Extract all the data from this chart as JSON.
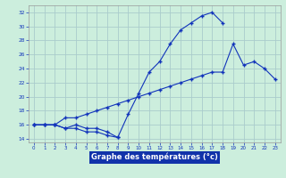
{
  "background_color": "#cceedd",
  "grid_color": "#aacccc",
  "line_color": "#1133bb",
  "xlabel": "Graphe des températures (°c)",
  "hours": [
    0,
    1,
    2,
    3,
    4,
    5,
    6,
    7,
    8,
    9,
    10,
    11,
    12,
    13,
    14,
    15,
    16,
    17,
    18,
    19,
    20,
    21,
    22,
    23
  ],
  "line1_x": [
    0,
    1,
    2,
    3,
    4,
    5,
    6,
    7,
    8,
    9,
    10,
    11,
    12,
    13,
    14,
    15,
    16,
    17,
    18
  ],
  "line1_y": [
    16.0,
    16.0,
    16.0,
    15.5,
    16.0,
    15.5,
    15.5,
    15.0,
    14.2,
    17.5,
    20.5,
    23.5,
    25.0,
    27.5,
    29.5,
    30.5,
    31.5,
    32.0,
    30.5
  ],
  "line2_x": [
    0,
    1,
    2,
    3,
    4,
    5,
    6,
    7,
    8
  ],
  "line2_y": [
    16.0,
    16.0,
    16.0,
    15.5,
    15.5,
    15.0,
    15.0,
    14.5,
    14.2
  ],
  "line3_x": [
    0,
    1,
    2,
    3,
    4,
    5,
    6,
    7,
    8,
    9,
    10,
    11,
    12,
    13,
    14,
    15,
    16,
    17,
    18,
    19,
    20,
    21,
    22,
    23
  ],
  "line3_y": [
    16.0,
    16.0,
    16.0,
    17.0,
    17.0,
    17.5,
    18.0,
    18.5,
    19.0,
    19.5,
    20.0,
    20.5,
    21.0,
    21.5,
    22.0,
    22.5,
    23.0,
    23.5,
    23.5,
    27.5,
    24.5,
    25.0,
    24.0,
    22.5
  ],
  "ylim": [
    13.5,
    33.0
  ],
  "yticks": [
    14,
    16,
    18,
    20,
    22,
    24,
    26,
    28,
    30,
    32
  ],
  "xlim": [
    -0.5,
    23.5
  ],
  "xticks": [
    0,
    1,
    2,
    3,
    4,
    5,
    6,
    7,
    8,
    9,
    10,
    11,
    12,
    13,
    14,
    15,
    16,
    17,
    18,
    19,
    20,
    21,
    22,
    23
  ]
}
